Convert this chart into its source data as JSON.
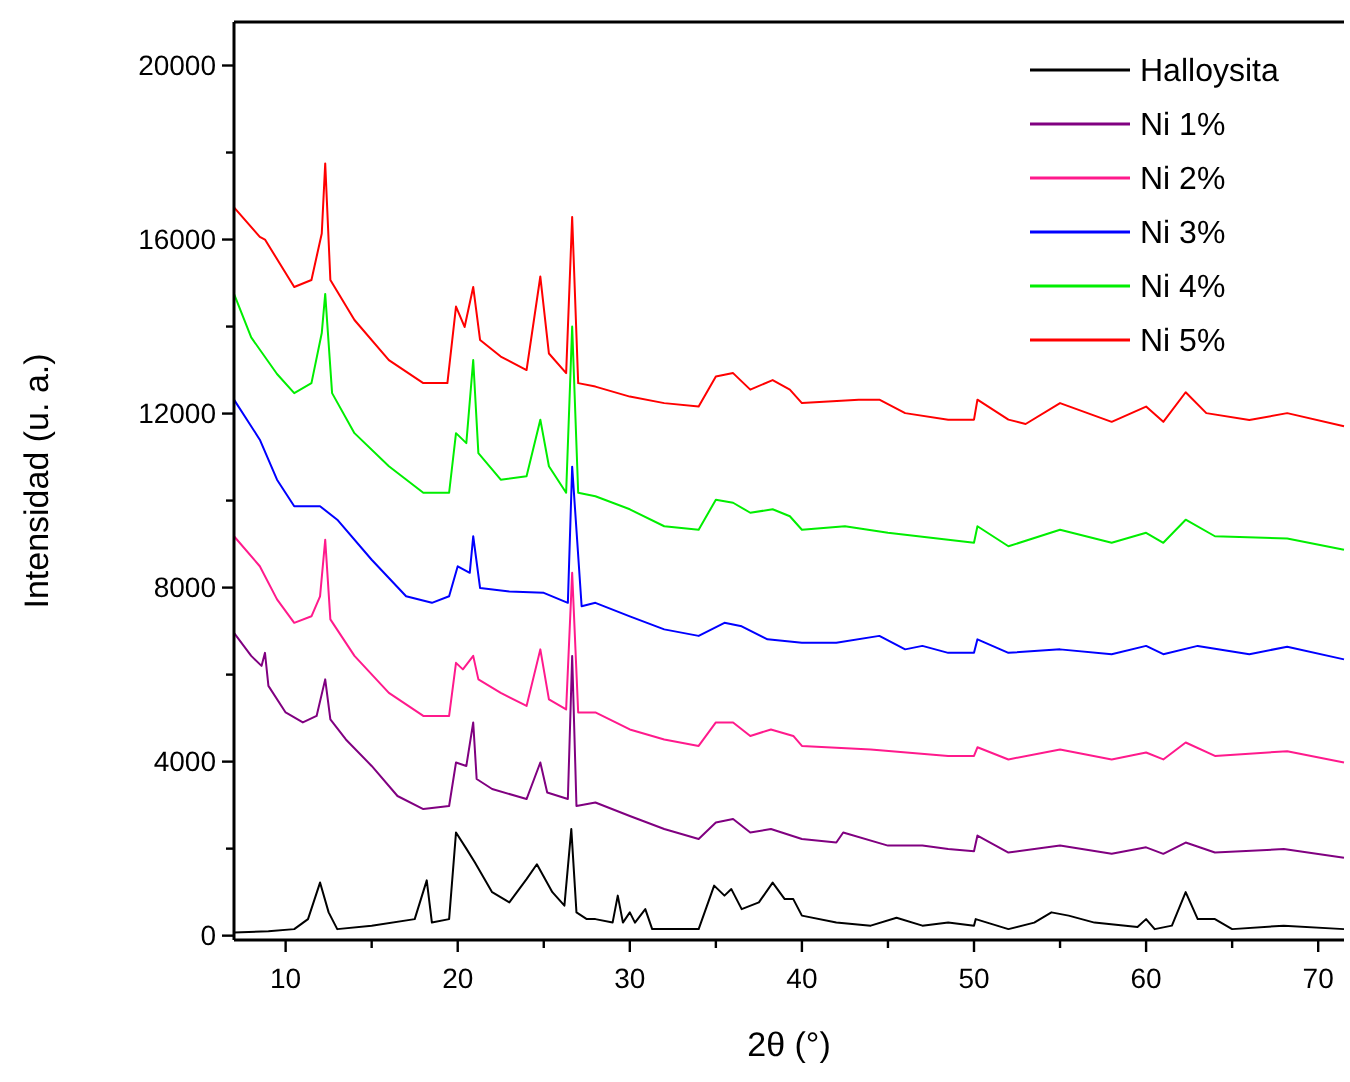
{
  "chart_data": {
    "type": "line",
    "xlabel": "2θ (°)",
    "ylabel": "Intensidad (u. a.)",
    "xlim": [
      7,
      71.5
    ],
    "ylim": [
      -100,
      21000
    ],
    "xticks": [
      10,
      {
        "value": 15,
        "label": null
      },
      20,
      {
        "value": 25,
        "label": null
      },
      30,
      {
        "value": 35,
        "label": null
      },
      40,
      {
        "value": 45,
        "label": null
      },
      50,
      {
        "value": 55,
        "label": null
      },
      60,
      {
        "value": 65,
        "label": null
      },
      70
    ],
    "yticks": [
      0,
      {
        "value": 2000,
        "label": null
      },
      4000,
      {
        "value": 6000,
        "label": null
      },
      8000,
      {
        "value": 10000,
        "label": null
      },
      12000,
      {
        "value": 14000,
        "label": null
      },
      16000,
      {
        "value": 18000,
        "label": null
      },
      20000
    ],
    "grid": false,
    "legend": "top right",
    "marker": "none",
    "line_style": "solid",
    "series": [
      {
        "name": "Halloysita",
        "color": "#000000",
        "x": [
          7,
          9,
          10.5,
          11.3,
          12,
          12.5,
          13,
          15,
          17.5,
          18.2,
          18.5,
          19.5,
          19.9,
          20.5,
          21,
          22,
          23,
          24,
          24.6,
          25.5,
          26.2,
          26.6,
          26.9,
          27.5,
          28,
          29,
          29.3,
          29.6,
          30,
          30.3,
          30.9,
          31.3,
          34,
          34.9,
          35.5,
          35.9,
          36.5,
          37.5,
          38.3,
          39,
          39.5,
          40,
          42,
          44,
          45.5,
          47,
          48.5,
          50,
          50.1,
          52,
          53.5,
          54.5,
          55.5,
          57,
          59.5,
          60,
          60.5,
          61.5,
          62.3,
          63,
          64,
          65,
          68,
          71.5
        ],
        "values": [
          75,
          100,
          150,
          380,
          1220,
          535,
          150,
          230,
          380,
          1270,
          300,
          380,
          2370,
          2000,
          1680,
          1000,
          765,
          1300,
          1640,
          1000,
          690,
          2450,
          535,
          380,
          380,
          300,
          920,
          300,
          535,
          300,
          610,
          150,
          150,
          1150,
          920,
          1070,
          610,
          765,
          1220,
          840,
          840,
          460,
          300,
          230,
          410,
          230,
          300,
          230,
          380,
          150,
          300,
          535,
          460,
          300,
          200,
          380,
          150,
          230,
          1000,
          380,
          380,
          150,
          230,
          150
        ]
      },
      {
        "name": "Ni 1%",
        "color": "#800080",
        "x": [
          7,
          8,
          8.6,
          8.8,
          9,
          10,
          11,
          11.8,
          12.3,
          12.6,
          13.5,
          15,
          16.5,
          18,
          19.5,
          19.9,
          20.5,
          20.9,
          21.1,
          22,
          24,
          24.8,
          25.2,
          26.4,
          26.65,
          26.9,
          28,
          30,
          32,
          34,
          35,
          36,
          37,
          38.2,
          40,
          42,
          42.4,
          45,
          47,
          48.5,
          50,
          50.2,
          52,
          55,
          58,
          60,
          61,
          62.3,
          64,
          68,
          71.5
        ],
        "values": [
          6960,
          6430,
          6200,
          6500,
          5740,
          5130,
          4900,
          5050,
          5890,
          4970,
          4510,
          3900,
          3210,
          2910,
          2980,
          3980,
          3900,
          4900,
          3600,
          3370,
          3140,
          3980,
          3290,
          3140,
          6430,
          2980,
          3060,
          2750,
          2450,
          2220,
          2600,
          2680,
          2370,
          2450,
          2220,
          2140,
          2370,
          2070,
          2070,
          1990,
          1940,
          2300,
          1910,
          2070,
          1880,
          2030,
          1880,
          2140,
          1910,
          1990,
          1790
        ]
      },
      {
        "name": "Ni 2%",
        "color": "#ff1a8c",
        "x": [
          7,
          8.5,
          9.5,
          10.5,
          11.5,
          12,
          12.3,
          12.6,
          14,
          16,
          18,
          19.5,
          19.9,
          20.3,
          20.9,
          21.2,
          22.5,
          24,
          24.8,
          25.3,
          26.3,
          26.65,
          27,
          28,
          30,
          32,
          34,
          35,
          36,
          37,
          38.2,
          39.5,
          40,
          44,
          48.5,
          50,
          50.2,
          52,
          55,
          58,
          60,
          61,
          62.3,
          64,
          68.2,
          71.5
        ],
        "values": [
          9180,
          8490,
          7730,
          7190,
          7340,
          7800,
          9100,
          7270,
          6430,
          5580,
          5050,
          5050,
          6270,
          6120,
          6430,
          5890,
          5580,
          5280,
          6580,
          5430,
          5200,
          8340,
          5130,
          5130,
          4740,
          4510,
          4360,
          4900,
          4900,
          4590,
          4740,
          4590,
          4360,
          4280,
          4130,
          4130,
          4330,
          4050,
          4280,
          4050,
          4210,
          4050,
          4440,
          4130,
          4240,
          3980
        ]
      },
      {
        "name": "Ni 3%",
        "color": "#0000ff",
        "x": [
          7,
          8.5,
          9.5,
          10.5,
          12,
          13,
          15,
          17,
          18.5,
          19.5,
          20,
          20.7,
          20.9,
          21.3,
          23,
          25,
          26.4,
          26.65,
          27.2,
          28,
          30,
          32,
          34,
          35.5,
          36.5,
          38,
          40,
          42,
          44.5,
          46,
          47,
          48.5,
          50,
          50.2,
          52,
          55,
          58,
          60,
          61,
          63,
          66,
          68.2,
          71.5
        ],
        "values": [
          12320,
          11400,
          10480,
          9870,
          9870,
          9560,
          8640,
          7800,
          7650,
          7800,
          8490,
          8340,
          9180,
          7990,
          7910,
          7880,
          7650,
          10780,
          7570,
          7650,
          7340,
          7040,
          6890,
          7190,
          7110,
          6810,
          6730,
          6730,
          6890,
          6580,
          6660,
          6500,
          6500,
          6810,
          6500,
          6580,
          6470,
          6660,
          6470,
          6660,
          6470,
          6640,
          6350
        ]
      },
      {
        "name": "Ni 4%",
        "color": "#00ee00",
        "x": [
          7,
          8,
          9.5,
          10.5,
          11.5,
          12.1,
          12.3,
          12.7,
          14,
          16,
          18,
          19.5,
          19.9,
          20.5,
          20.9,
          21.2,
          22.5,
          24,
          24.8,
          25.3,
          26.3,
          26.65,
          27,
          28,
          30,
          32,
          34,
          35,
          36,
          37,
          38.3,
          39.3,
          40,
          42.5,
          45,
          48.5,
          50,
          50.2,
          52,
          55,
          58,
          60,
          61,
          62.3,
          64,
          68.2,
          71.5
        ],
        "values": [
          14750,
          13750,
          12910,
          12470,
          12700,
          13850,
          14750,
          12470,
          11550,
          10790,
          10180,
          10180,
          11550,
          11320,
          13230,
          11090,
          10480,
          10560,
          11860,
          10790,
          10180,
          14000,
          10180,
          10100,
          9800,
          9410,
          9330,
          10020,
          9950,
          9720,
          9800,
          9640,
          9330,
          9410,
          9260,
          9100,
          9030,
          9410,
          8950,
          9330,
          9030,
          9260,
          9030,
          9560,
          9180,
          9130,
          8870
        ]
      },
      {
        "name": "Ni 5%",
        "color": "#ff0000",
        "x": [
          7,
          8.5,
          8.8,
          10.5,
          11.5,
          12.1,
          12.3,
          12.6,
          14,
          16,
          18,
          19.4,
          19.9,
          20.4,
          20.9,
          21.3,
          22.5,
          24,
          24.8,
          25.3,
          26.3,
          26.65,
          27,
          28,
          30,
          32,
          34,
          35,
          36,
          37,
          38.3,
          39.3,
          40,
          43.3,
          44.5,
          46,
          48.5,
          50,
          50.2,
          52,
          53,
          55,
          58,
          60,
          61,
          62.3,
          63.5,
          66,
          68.2,
          71.5
        ],
        "values": [
          16740,
          16060,
          16000,
          14910,
          15070,
          16140,
          17750,
          15070,
          14150,
          13230,
          12700,
          12700,
          14460,
          13990,
          14910,
          13690,
          13310,
          13000,
          15150,
          13380,
          12930,
          16520,
          12700,
          12620,
          12390,
          12240,
          12160,
          12850,
          12930,
          12550,
          12770,
          12550,
          12240,
          12320,
          12320,
          12010,
          11860,
          11860,
          12320,
          11860,
          11760,
          12240,
          11810,
          12160,
          11810,
          12490,
          12010,
          11850,
          12010,
          11710
        ]
      }
    ]
  }
}
